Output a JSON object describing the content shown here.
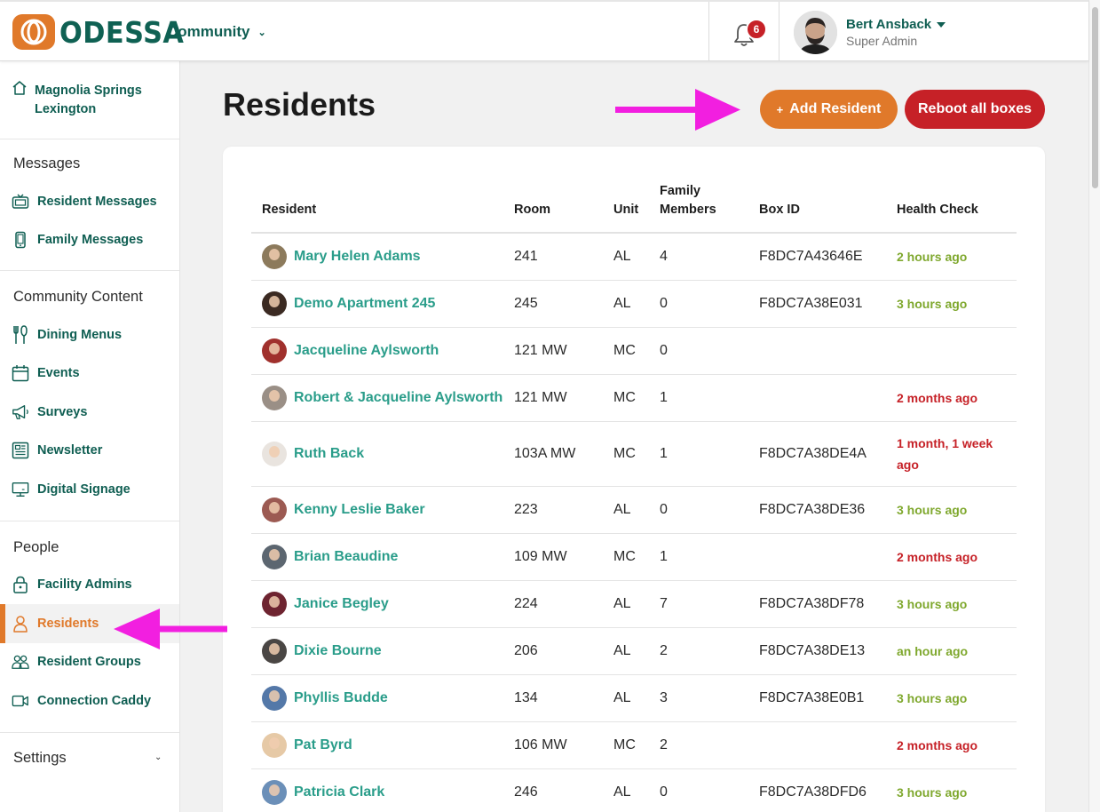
{
  "header": {
    "logo_text": "ODESSA",
    "community_label": "Community",
    "notification_count": "6",
    "user_name": "Bert Ansback",
    "user_role": "Super Admin"
  },
  "sidebar": {
    "facility_name": "Magnolia Springs Lexington",
    "sections": [
      {
        "heading": "Messages",
        "items": [
          {
            "label": "Resident Messages",
            "icon": "tv-icon"
          },
          {
            "label": "Family Messages",
            "icon": "phone-icon"
          }
        ]
      },
      {
        "heading": "Community Content",
        "items": [
          {
            "label": "Dining Menus",
            "icon": "utensils-icon"
          },
          {
            "label": "Events",
            "icon": "calendar-icon"
          },
          {
            "label": "Surveys",
            "icon": "megaphone-icon"
          },
          {
            "label": "Newsletter",
            "icon": "newsletter-icon"
          },
          {
            "label": "Digital Signage",
            "icon": "monitor-icon"
          }
        ]
      },
      {
        "heading": "People",
        "items": [
          {
            "label": "Facility Admins",
            "icon": "lock-icon"
          },
          {
            "label": "Residents",
            "icon": "person-icon",
            "active": true
          },
          {
            "label": "Resident Groups",
            "icon": "group-icon"
          },
          {
            "label": "Connection Caddy",
            "icon": "video-camera-icon"
          }
        ]
      }
    ],
    "settings_label": "Settings"
  },
  "main": {
    "title": "Residents",
    "add_button": "Add Resident",
    "add_button_icon": "+",
    "reboot_button": "Reboot all boxes"
  },
  "table": {
    "headers": {
      "resident": "Resident",
      "room": "Room",
      "unit": "Unit",
      "family_members": "Family Members",
      "box_id": "Box ID",
      "health_check": "Health Check"
    },
    "rows": [
      {
        "name": "Mary Helen Adams",
        "room": "241",
        "unit": "AL",
        "family": "4",
        "box_id": "F8DC7A43646E",
        "health": "2 hours ago",
        "health_status": "ok",
        "avatar_color": "#8c7a5c"
      },
      {
        "name": "Demo Apartment 245",
        "room": "245",
        "unit": "AL",
        "family": "0",
        "box_id": "F8DC7A38E031",
        "health": "3 hours ago",
        "health_status": "ok",
        "avatar_color": "#3b2a22"
      },
      {
        "name": "Jacqueline Aylsworth",
        "room": "121 MW",
        "unit": "MC",
        "family": "0",
        "box_id": "",
        "health": "",
        "health_status": "none",
        "avatar_color": "#a0302c"
      },
      {
        "name": "Robert & Jacqueline Aylsworth",
        "room": "121 MW",
        "unit": "MC",
        "family": "1",
        "box_id": "",
        "health": "2 months ago",
        "health_status": "stale",
        "avatar_color": "#9a8f86"
      },
      {
        "name": "Ruth Back",
        "room": "103A MW",
        "unit": "MC",
        "family": "1",
        "box_id": "F8DC7A38DE4A",
        "health": "1 month, 1 week ago",
        "health_status": "stale",
        "avatar_color": "#e9e4df"
      },
      {
        "name": "Kenny Leslie Baker",
        "room": "223",
        "unit": "AL",
        "family": "0",
        "box_id": "F8DC7A38DE36",
        "health": "3 hours ago",
        "health_status": "ok",
        "avatar_color": "#9c5a52"
      },
      {
        "name": "Brian Beaudine",
        "room": "109 MW",
        "unit": "MC",
        "family": "1",
        "box_id": "",
        "health": "2 months ago",
        "health_status": "stale",
        "avatar_color": "#5c6670"
      },
      {
        "name": "Janice Begley",
        "room": "224",
        "unit": "AL",
        "family": "7",
        "box_id": "F8DC7A38DF78",
        "health": "3 hours ago",
        "health_status": "ok",
        "avatar_color": "#6e2430"
      },
      {
        "name": "Dixie Bourne",
        "room": "206",
        "unit": "AL",
        "family": "2",
        "box_id": "F8DC7A38DE13",
        "health": "an hour ago",
        "health_status": "ok",
        "avatar_color": "#4a4644"
      },
      {
        "name": "Phyllis Budde",
        "room": "134",
        "unit": "AL",
        "family": "3",
        "box_id": "F8DC7A38E0B1",
        "health": "3 hours ago",
        "health_status": "ok",
        "avatar_color": "#5478a8"
      },
      {
        "name": "Pat Byrd",
        "room": "106 MW",
        "unit": "MC",
        "family": "2",
        "box_id": "",
        "health": "2 months ago",
        "health_status": "stale",
        "avatar_color": "#e6c9a6"
      },
      {
        "name": "Patricia Clark",
        "room": "246",
        "unit": "AL",
        "family": "0",
        "box_id": "F8DC7A38DFD6",
        "health": "3 hours ago",
        "health_status": "ok",
        "avatar_color": "#6b8fb8"
      }
    ]
  },
  "colors": {
    "brand_green": "#0f5e52",
    "link_teal": "#2a9d8a",
    "accent_orange": "#e0792a",
    "danger_red": "#c62127",
    "health_ok": "#7fa82e",
    "annotation_magenta": "#f21fe0"
  }
}
